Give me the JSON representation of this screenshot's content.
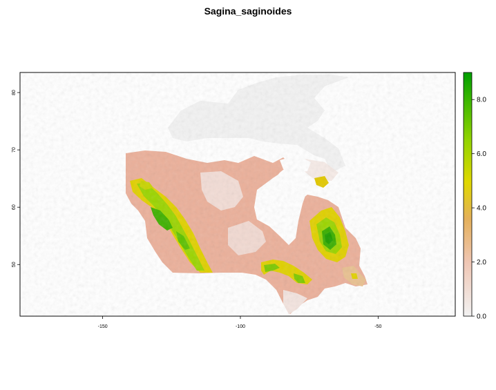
{
  "title": "Sagina_saginoides",
  "chart_data": {
    "type": "heatmap",
    "title": "Sagina_saginoides",
    "x_ticks": [
      -150,
      -100,
      -50
    ],
    "y_ticks": [
      50,
      60,
      70,
      80
    ],
    "xlim": [
      -180,
      -22
    ],
    "ylim": [
      41,
      83.5
    ],
    "legend": {
      "min": 0.0,
      "max": 9.0,
      "ticks": [
        0.0,
        2.0,
        4.0,
        6.0,
        8.0
      ],
      "tick_labels": [
        "0.0",
        "2.0",
        "4.0",
        "6.0",
        "8.0"
      ],
      "colors": [
        "#f2f2f2",
        "#f1d3c8",
        "#eaae84",
        "#e3c04c",
        "#e3e300",
        "#a5d900",
        "#5cc500",
        "#009e00"
      ]
    },
    "plot_region": "Canada"
  }
}
